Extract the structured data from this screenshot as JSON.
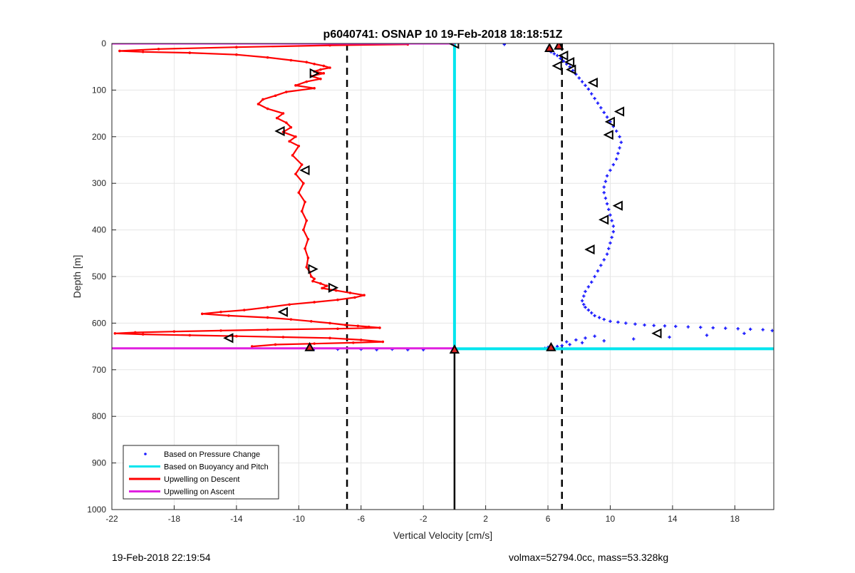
{
  "footer": {
    "timestamp": "19-Feb-2018 22:19:54",
    "summary": "volmax=52794.0cc, mass=53.328kg"
  },
  "chart_data": {
    "type": "scatter",
    "title": "p6040741: OSNAP 10 19-Feb-2018 18:18:51Z",
    "xlabel": "Vertical Velocity [cm/s]",
    "ylabel": "Depth [m]",
    "xlim": [
      -22,
      20.5
    ],
    "ylim": [
      1000,
      0
    ],
    "y_reversed": true,
    "grid": true,
    "xticks": [
      -22,
      -18,
      -14,
      -10,
      -6,
      -2,
      2,
      6,
      10,
      14,
      18
    ],
    "yticks": [
      0,
      100,
      200,
      300,
      400,
      500,
      600,
      700,
      800,
      900,
      1000
    ],
    "legend_position": "bottom-left",
    "reference_lines": {
      "dashed_x": [
        -6.9,
        6.9
      ],
      "solid_segment": {
        "x": 0,
        "y_from": 655,
        "y_to": 1000
      }
    },
    "series": [
      {
        "name": "Based on Pressure Change",
        "style": "points",
        "color": "#1a1aff",
        "x": [
          6.0,
          6.1,
          6.2,
          6.4,
          6.6,
          6.8,
          7.0,
          7.2,
          7.4,
          7.6,
          7.8,
          8.0,
          8.2,
          8.4,
          8.6,
          8.8,
          9.0,
          9.2,
          9.4,
          9.6,
          9.8,
          10.0,
          10.2,
          10.4,
          10.6,
          10.7,
          10.6,
          10.5,
          10.4,
          10.2,
          10.0,
          9.8,
          9.7,
          9.6,
          9.6,
          9.7,
          9.8,
          9.9,
          10.0,
          10.1,
          10.2,
          10.2,
          10.1,
          10.0,
          9.9,
          9.8,
          9.6,
          9.4,
          9.2,
          9.0,
          8.8,
          8.6,
          8.4,
          8.3,
          8.2,
          8.3,
          8.4,
          8.6,
          8.8,
          9.0,
          9.3,
          9.6,
          10.0,
          10.5,
          11.0,
          11.6,
          12.2,
          12.8,
          13.5,
          14.2,
          15.0,
          15.8,
          16.6,
          17.4,
          18.2,
          19.0,
          19.8,
          20.4,
          18.6,
          16.2,
          13.8,
          11.5,
          9.6,
          8.2,
          7.4,
          6.9,
          6.6,
          6.3,
          6.0,
          5.8,
          7.2,
          7.8,
          8.4,
          9.0,
          -2.0,
          -3.0,
          -4.0,
          -5.0,
          -6.0,
          -7.5,
          -9.0,
          -7.7,
          3.2
        ],
        "y": [
          10,
          14,
          18,
          22,
          26,
          32,
          38,
          44,
          50,
          58,
          66,
          74,
          82,
          90,
          98,
          108,
          118,
          128,
          138,
          148,
          158,
          168,
          178,
          188,
          200,
          212,
          224,
          236,
          248,
          260,
          272,
          284,
          296,
          308,
          320,
          332,
          344,
          356,
          368,
          380,
          392,
          404,
          416,
          428,
          440,
          452,
          464,
          476,
          488,
          500,
          512,
          522,
          532,
          542,
          552,
          560,
          566,
          572,
          578,
          584,
          588,
          592,
          596,
          598,
          600,
          602,
          604,
          605,
          606,
          607,
          608,
          609,
          610,
          611,
          612,
          613,
          614,
          616,
          622,
          626,
          630,
          634,
          638,
          642,
          646,
          648,
          650,
          651,
          652,
          654,
          640,
          636,
          632,
          628,
          657,
          657,
          656,
          657,
          656,
          656,
          655,
          2,
          2
        ]
      },
      {
        "name": "Based on Buoyancy and Pitch",
        "style": "line",
        "color": "#00e5ee",
        "x": [
          0,
          0,
          0,
          20.5
        ],
        "y": [
          0,
          655,
          655,
          655
        ]
      },
      {
        "name": "Upwelling on Descent",
        "style": "line-markers",
        "color": "#ff0000",
        "x": [
          -3.0,
          -8.0,
          -14.0,
          -19.0,
          -21.5,
          -20.0,
          -17.0,
          -14.0,
          -12.0,
          -10.5,
          -9.5,
          -9.0,
          -8.4,
          -8.0,
          -8.6,
          -9.0,
          -8.4,
          -9.2,
          -8.6,
          -9.5,
          -10.2,
          -9.0,
          -10.8,
          -11.5,
          -12.3,
          -12.6,
          -12.0,
          -11.0,
          -11.4,
          -10.8,
          -10.5,
          -11.0,
          -10.2,
          -10.6,
          -10.0,
          -10.4,
          -9.8,
          -10.2,
          -9.7,
          -10.0,
          -9.6,
          -9.8,
          -9.5,
          -9.7,
          -9.4,
          -9.6,
          -9.4,
          -9.5,
          -9.3,
          -9.2,
          -9.0,
          -9.1,
          -8.6,
          -8.2,
          -8.5,
          -7.6,
          -6.7,
          -5.8,
          -6.4,
          -7.5,
          -9.0,
          -10.6,
          -12.0,
          -13.5,
          -15.0,
          -16.2,
          -14.5,
          -12.0,
          -10.5,
          -9.2,
          -8.0,
          -7.0,
          -6.2,
          -5.5,
          -4.8,
          -7.5,
          -12.0,
          -15.0,
          -18.0,
          -20.5,
          -21.8,
          -20.0,
          -17.0,
          -14.0,
          -11.0,
          -8.0,
          -6.0,
          -4.6,
          -6.5,
          -9.0,
          -11.5,
          -13.0
        ],
        "y": [
          2,
          4,
          8,
          12,
          16,
          18,
          20,
          24,
          30,
          36,
          40,
          44,
          48,
          52,
          56,
          60,
          64,
          70,
          76,
          82,
          90,
          96,
          104,
          112,
          120,
          130,
          140,
          150,
          160,
          170,
          180,
          190,
          200,
          210,
          220,
          240,
          260,
          280,
          300,
          320,
          340,
          360,
          380,
          400,
          420,
          440,
          460,
          480,
          490,
          500,
          505,
          510,
          515,
          520,
          525,
          530,
          535,
          540,
          545,
          550,
          555,
          560,
          566,
          572,
          576,
          580,
          584,
          588,
          592,
          596,
          600,
          604,
          606,
          608,
          610,
          612,
          614,
          616,
          618,
          620,
          622,
          624,
          626,
          628,
          630,
          632,
          636,
          640,
          642,
          644,
          646,
          650
        ]
      },
      {
        "name": "Upwelling on Ascent",
        "style": "line",
        "color": "#e020e0",
        "x": [
          -22,
          0,
          -22,
          0
        ],
        "y": [
          0,
          0,
          654,
          654
        ]
      }
    ],
    "markers": {
      "color": "#000000",
      "points": [
        {
          "x": 0.0,
          "y": 1,
          "dir": "left"
        },
        {
          "x": 6.1,
          "y": 10,
          "dir": "up"
        },
        {
          "x": 6.7,
          "y": 5,
          "dir": "up"
        },
        {
          "x": 7.0,
          "y": 26,
          "dir": "left"
        },
        {
          "x": 7.4,
          "y": 40,
          "dir": "left"
        },
        {
          "x": 6.6,
          "y": 48,
          "dir": "left"
        },
        {
          "x": 7.5,
          "y": 56,
          "dir": "left"
        },
        {
          "x": -9.0,
          "y": 64,
          "dir": "right"
        },
        {
          "x": 8.9,
          "y": 84,
          "dir": "left"
        },
        {
          "x": 10.6,
          "y": 146,
          "dir": "left"
        },
        {
          "x": 10.0,
          "y": 168,
          "dir": "left"
        },
        {
          "x": -11.2,
          "y": 188,
          "dir": "left"
        },
        {
          "x": 9.9,
          "y": 196,
          "dir": "left"
        },
        {
          "x": -9.6,
          "y": 272,
          "dir": "left"
        },
        {
          "x": 10.5,
          "y": 348,
          "dir": "left"
        },
        {
          "x": 9.6,
          "y": 378,
          "dir": "left"
        },
        {
          "x": 8.7,
          "y": 442,
          "dir": "left"
        },
        {
          "x": -9.1,
          "y": 484,
          "dir": "right"
        },
        {
          "x": -7.8,
          "y": 524,
          "dir": "right"
        },
        {
          "x": -11.0,
          "y": 576,
          "dir": "left"
        },
        {
          "x": 13.0,
          "y": 622,
          "dir": "left"
        },
        {
          "x": -14.5,
          "y": 632,
          "dir": "left"
        },
        {
          "x": -9.3,
          "y": 652,
          "dir": "up"
        },
        {
          "x": 6.2,
          "y": 652,
          "dir": "up"
        },
        {
          "x": 0.0,
          "y": 657,
          "dir": "up"
        }
      ]
    }
  }
}
